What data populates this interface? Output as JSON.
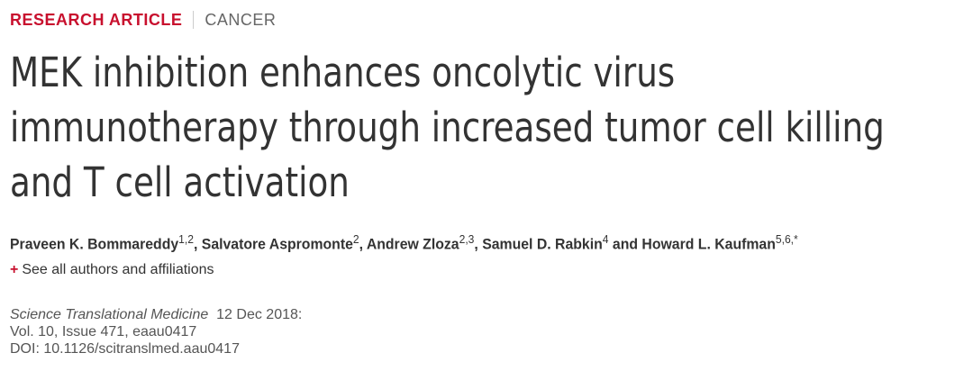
{
  "header": {
    "type": "RESEARCH ARTICLE",
    "section": "CANCER"
  },
  "title": "MEK inhibition enhances oncolytic virus immunotherapy through increased tumor cell killing and T cell activation",
  "authors": [
    {
      "name": "Praveen K. Bommareddy",
      "aff": "1,2",
      "sep": ","
    },
    {
      "name": "Salvatore Aspromonte",
      "aff": "2",
      "sep": ","
    },
    {
      "name": "Andrew Zloza",
      "aff": "2,3",
      "sep": ","
    },
    {
      "name": "Samuel D. Rabkin",
      "aff": "4",
      "sep": "and"
    },
    {
      "name": "Howard L. Kaufman",
      "aff": "5,6,*",
      "sep": ""
    }
  ],
  "affiliations_link": {
    "icon": "+",
    "text": "See all authors and affiliations"
  },
  "citation": {
    "journal": "Science Translational Medicine",
    "date": "12 Dec 2018:",
    "volume": "Vol. 10, Issue 471, eaau0417",
    "doi": "DOI: 10.1126/scitranslmed.aau0417"
  }
}
